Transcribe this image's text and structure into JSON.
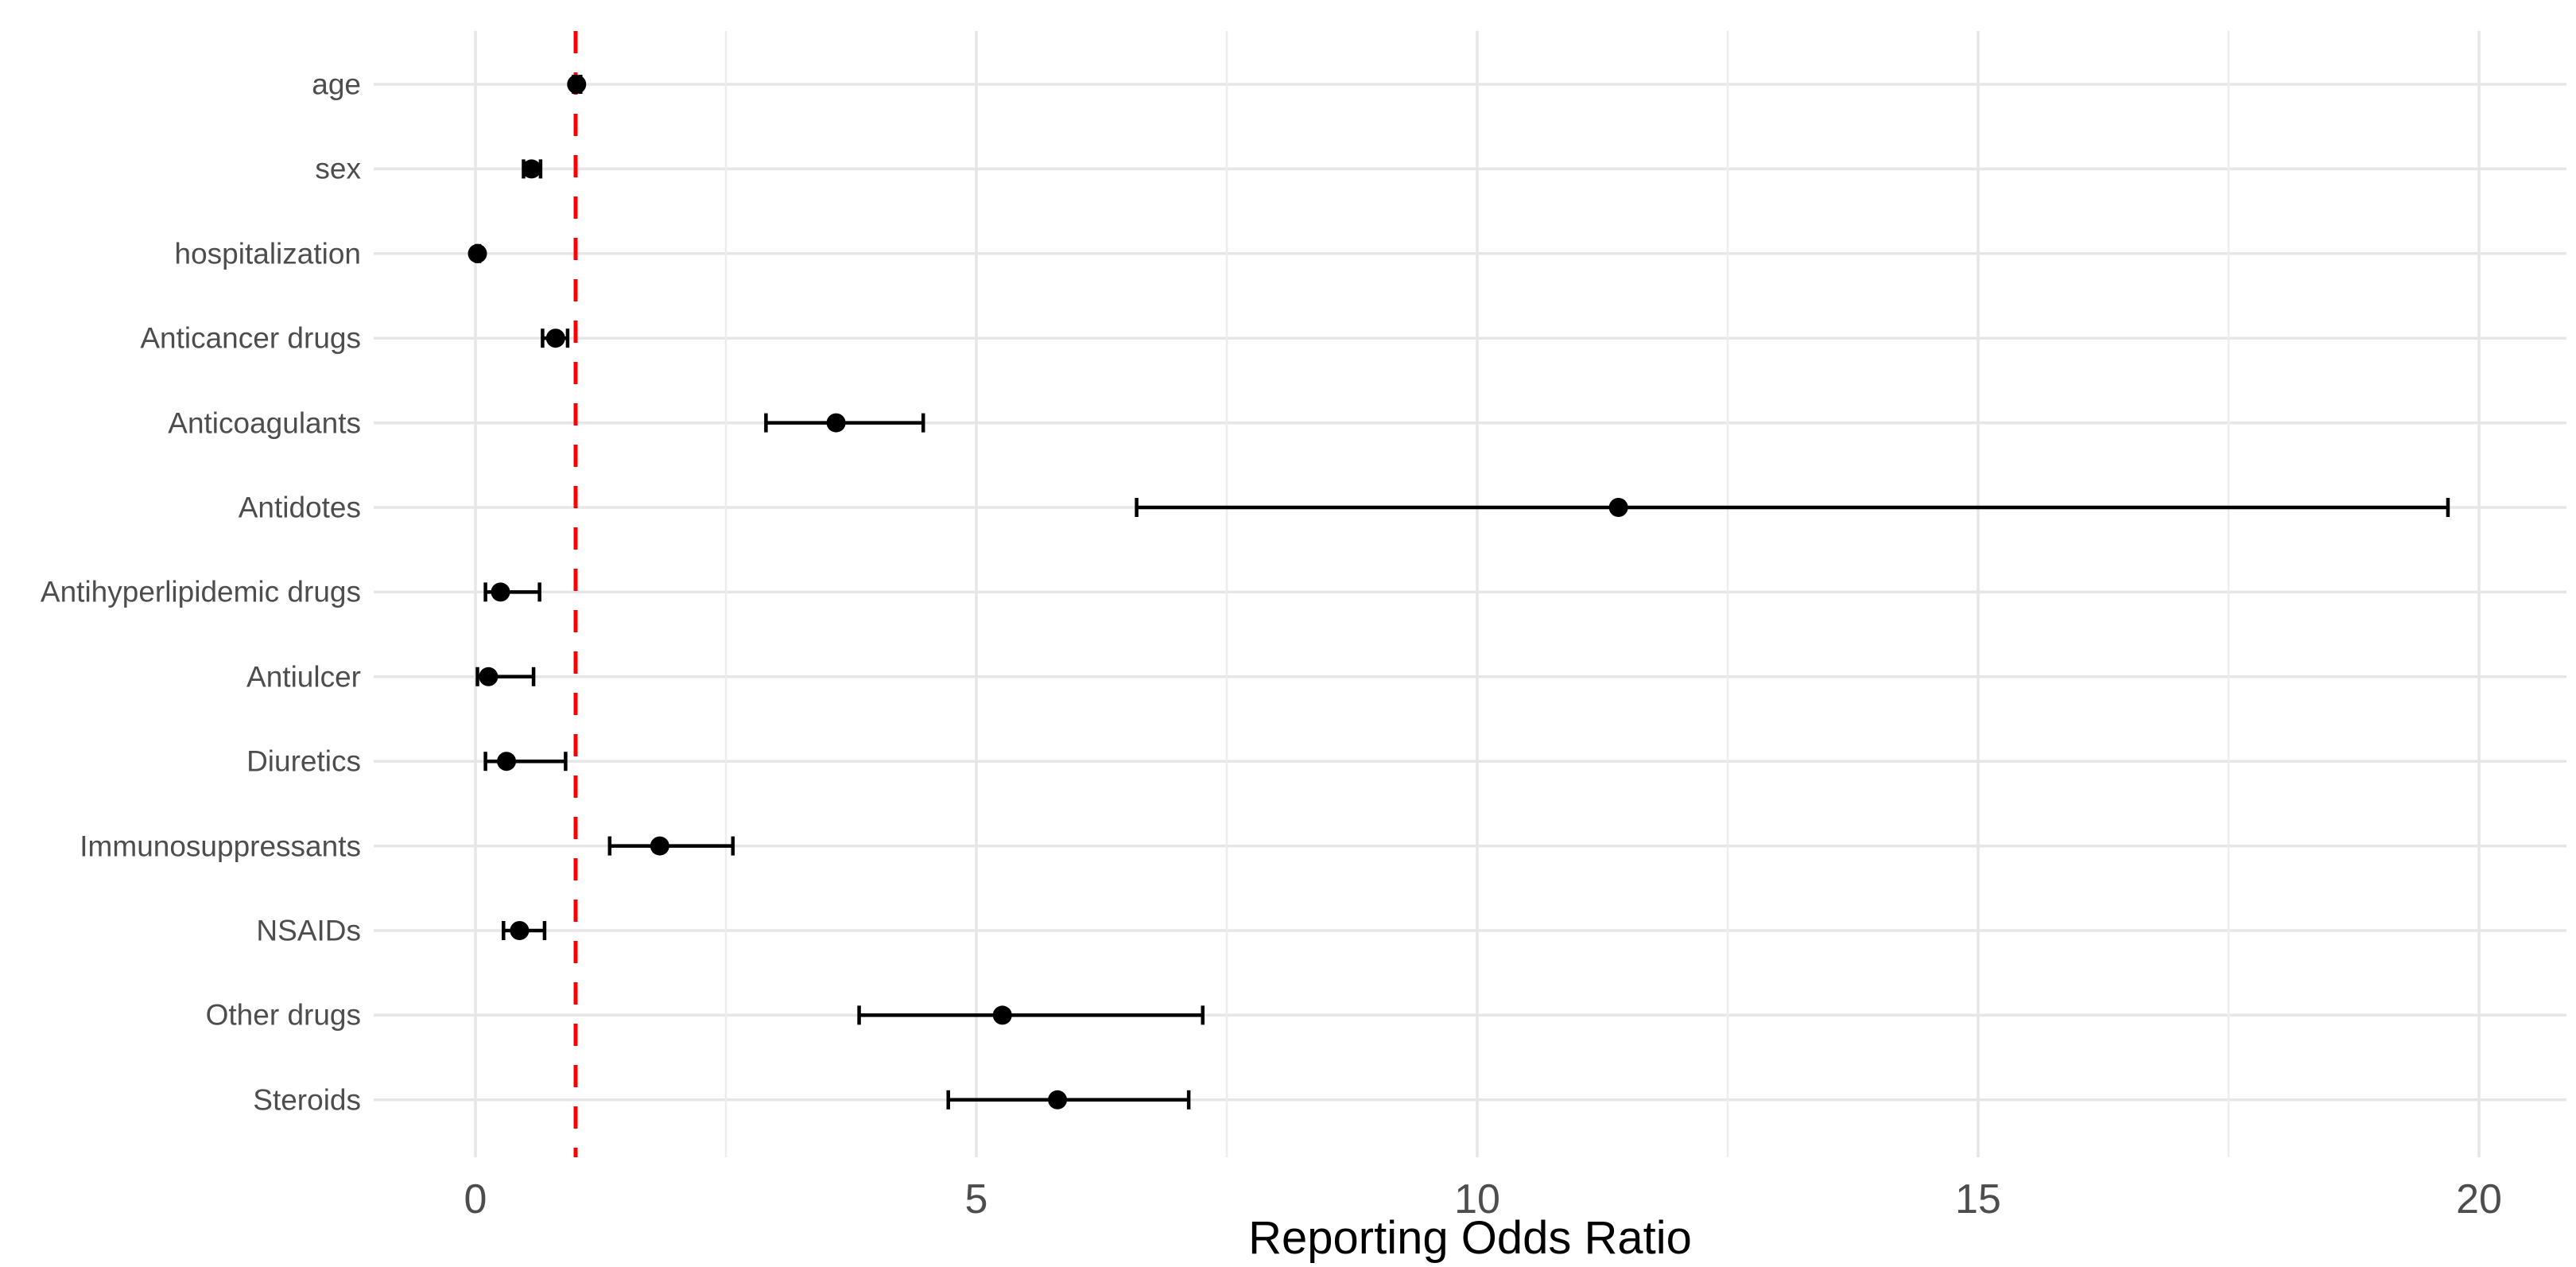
{
  "chart_data": {
    "type": "scatter",
    "variant": "forest-plot",
    "title": "",
    "xlabel": "Reporting Odds Ratio",
    "ylabel": "",
    "xlim": [
      -1.02,
      20.87
    ],
    "x_major_ticks": [
      0,
      5,
      10,
      15,
      20
    ],
    "x_minor_ticks": [
      2.5,
      7.5,
      12.5,
      17.5
    ],
    "grid": "major-and-minor-x, major-y",
    "legend": "none",
    "reference_line_x": 1,
    "reference_line_style": "dashed",
    "categories": [
      "age",
      "sex",
      "hospitalization",
      "Anticancer drugs",
      "Anticoagulants",
      "Antidotes",
      "Antihyperlipidemic drugs",
      "Antiulcer",
      "Diuretics",
      "Immunosuppressants",
      "NSAIDs",
      "Other drugs",
      "Steroids"
    ],
    "series": [
      {
        "name": "Reporting Odds Ratio (point estimate with 95% CI)",
        "values": [
          {
            "label": "age",
            "estimate": 1.01,
            "ci_low": 0.98,
            "ci_high": 1.05
          },
          {
            "label": "sex",
            "estimate": 0.56,
            "ci_low": 0.48,
            "ci_high": 0.65
          },
          {
            "label": "hospitalization",
            "estimate": 0.02,
            "ci_low": 0.01,
            "ci_high": 0.04
          },
          {
            "label": "Anticancer drugs",
            "estimate": 0.8,
            "ci_low": 0.67,
            "ci_high": 0.92
          },
          {
            "label": "Anticoagulants",
            "estimate": 3.6,
            "ci_low": 2.9,
            "ci_high": 4.47
          },
          {
            "label": "Antidotes",
            "estimate": 11.41,
            "ci_low": 6.6,
            "ci_high": 19.69
          },
          {
            "label": "Antihyperlipidemic drugs",
            "estimate": 0.25,
            "ci_low": 0.1,
            "ci_high": 0.64
          },
          {
            "label": "Antiulcer",
            "estimate": 0.13,
            "ci_low": 0.02,
            "ci_high": 0.58
          },
          {
            "label": "Diuretics",
            "estimate": 0.31,
            "ci_low": 0.1,
            "ci_high": 0.9
          },
          {
            "label": "Immunosuppressants",
            "estimate": 1.84,
            "ci_low": 1.34,
            "ci_high": 2.57
          },
          {
            "label": "NSAIDs",
            "estimate": 0.44,
            "ci_low": 0.28,
            "ci_high": 0.69
          },
          {
            "label": "Other drugs",
            "estimate": 5.26,
            "ci_low": 3.83,
            "ci_high": 7.26
          },
          {
            "label": "Steroids",
            "estimate": 5.81,
            "ci_low": 4.72,
            "ci_high": 7.12
          }
        ]
      }
    ],
    "colors": {
      "background": "#ffffff",
      "point": "#000000",
      "error_bar": "#000000",
      "reference_line": "#ff0000",
      "grid_major": "#e6e6e6",
      "grid_minor": "#ededed",
      "axis_text": "#4d4d4d",
      "axis_title": "#000000"
    }
  }
}
